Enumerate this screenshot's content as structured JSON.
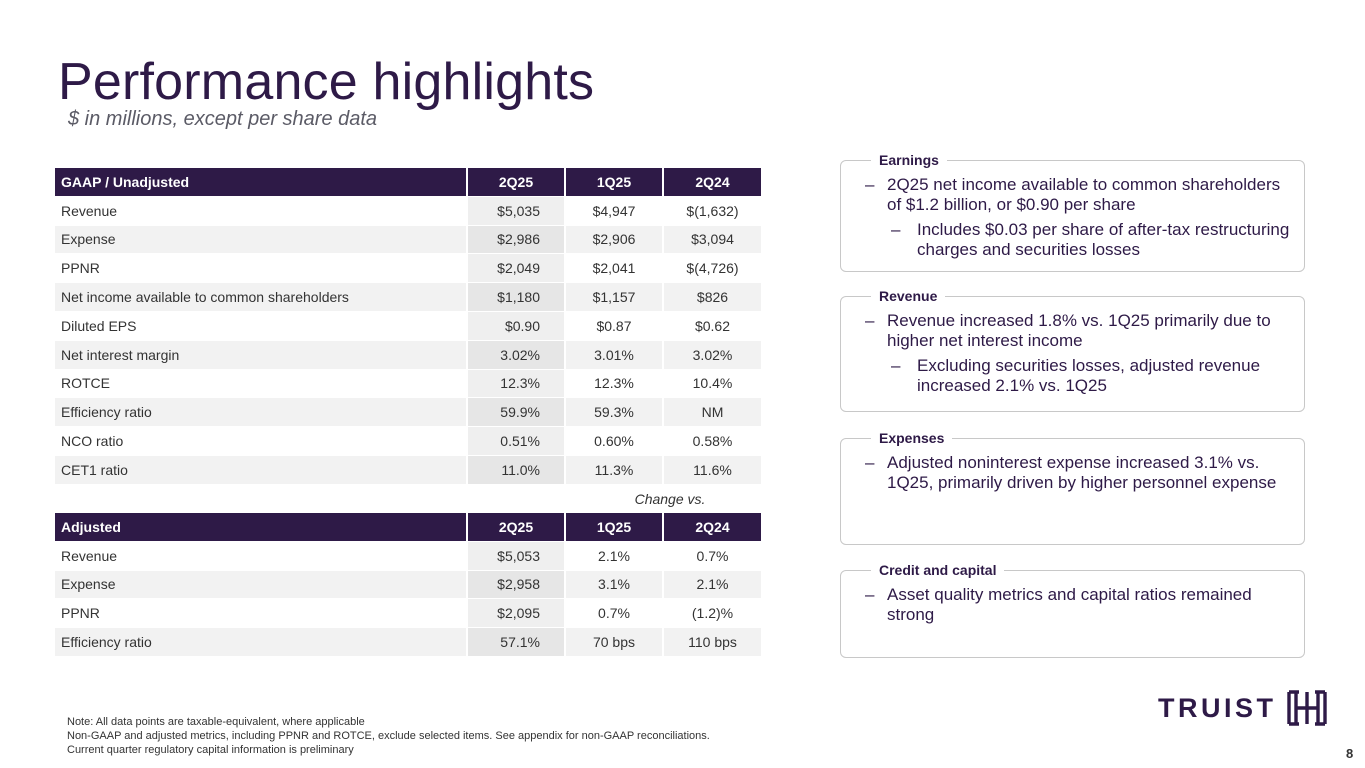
{
  "header": {
    "title": "Performance highlights",
    "subtitle": "$ in millions, except per share data"
  },
  "gaap_table": {
    "headers": [
      "GAAP / Unadjusted",
      "2Q25",
      "1Q25",
      "2Q24"
    ],
    "rows": [
      [
        "Revenue",
        "$5,035",
        "$4,947",
        "$(1,632)"
      ],
      [
        "Expense",
        "$2,986",
        "$2,906",
        "$3,094"
      ],
      [
        "PPNR",
        "$2,049",
        "$2,041",
        "$(4,726)"
      ],
      [
        "Net income available to common shareholders",
        "$1,180",
        "$1,157",
        "$826"
      ],
      [
        "Diluted EPS",
        "$0.90",
        "$0.87",
        "$0.62"
      ],
      [
        "Net interest margin",
        "3.02%",
        "3.01%",
        "3.02%"
      ],
      [
        "ROTCE",
        "12.3%",
        "12.3%",
        "10.4%"
      ],
      [
        "Efficiency ratio",
        "59.9%",
        "59.3%",
        "NM"
      ],
      [
        "NCO ratio",
        "0.51%",
        "0.60%",
        "0.58%"
      ],
      [
        "CET1 ratio",
        "11.0%",
        "11.3%",
        "11.6%"
      ]
    ]
  },
  "change_label": "Change vs.",
  "adjusted_table": {
    "headers": [
      "Adjusted",
      "2Q25",
      "1Q25",
      "2Q24"
    ],
    "rows": [
      [
        "Revenue",
        "$5,053",
        "2.1%",
        "0.7%"
      ],
      [
        "Expense",
        "$2,958",
        "3.1%",
        "2.1%"
      ],
      [
        "PPNR",
        "$2,095",
        "0.7%",
        "(1.2)%"
      ],
      [
        "Efficiency ratio",
        "57.1%",
        "70 bps",
        "110 bps"
      ]
    ]
  },
  "cards": {
    "earnings": {
      "label": "Earnings",
      "bullet": "2Q25 net income available to common shareholders of $1.2 billion, or $0.90 per share",
      "sub_bullet": "Includes $0.03 per share of after-tax restructuring charges and securities losses"
    },
    "revenue": {
      "label": "Revenue",
      "bullet": "Revenue increased 1.8% vs. 1Q25 primarily due to higher net interest income",
      "sub_bullet": "Excluding securities losses, adjusted revenue increased 2.1% vs. 1Q25"
    },
    "expenses": {
      "label": "Expenses",
      "bullet": "Adjusted noninterest expense increased 3.1% vs. 1Q25, primarily driven by higher personnel expense"
    },
    "credit": {
      "label": "Credit and capital",
      "bullet": "Asset quality metrics and capital ratios remained strong"
    }
  },
  "footnotes": [
    "Note: All data points are taxable-equivalent, where applicable",
    "Non-GAAP and adjusted metrics, including PPNR and ROTCE, exclude selected items.  See appendix for non-GAAP reconciliations.",
    "Current quarter regulatory capital information is preliminary"
  ],
  "logo": {
    "text": "TRUIST",
    "icon": "truist-mark-icon",
    "color": "#2e1a47"
  },
  "page_number": "8",
  "colors": {
    "brand_purple": "#2e1a47",
    "row_alt": "#f2f2f2",
    "highlight_col": "#e8e8e8"
  }
}
